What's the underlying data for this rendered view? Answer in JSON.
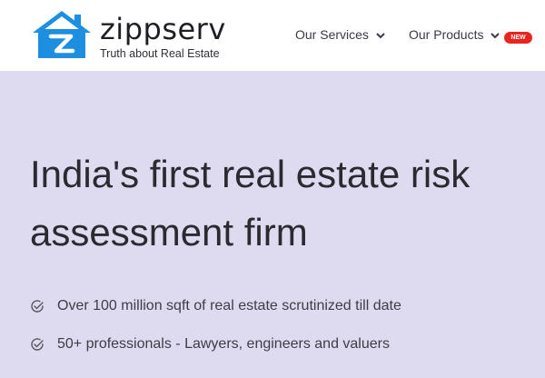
{
  "brand": {
    "name": "zippserv",
    "tagline": "Truth about Real Estate"
  },
  "nav": {
    "services_label": "Our Services",
    "products_label": "Our Products",
    "new_badge": "NEW"
  },
  "hero": {
    "headline": "India's first real estate risk assessment firm",
    "bullets": [
      "Over 100 million sqft of real estate scrutinized till date",
      "50+ professionals - Lawyers, engineers and valuers"
    ]
  },
  "colors": {
    "hero_background": "#dedbf0",
    "logo_blue": "#1e8fe0",
    "badge_red": "#e8261f"
  },
  "icons": {
    "logo": "house-z-logo-icon",
    "dropdown": "chevron-down-icon",
    "bullet": "check-circle-icon"
  }
}
